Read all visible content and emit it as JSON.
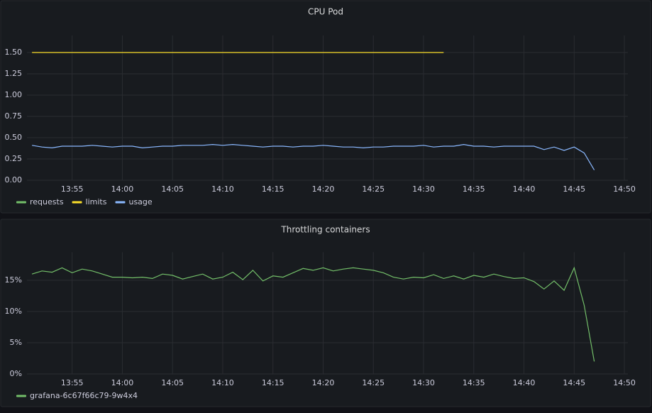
{
  "chart_data": [
    {
      "type": "line",
      "title": "CPU Pod",
      "x": [
        831,
        832,
        833,
        834,
        835,
        836,
        837,
        838,
        839,
        840,
        841,
        842,
        843,
        844,
        845,
        846,
        847,
        848,
        849,
        850,
        851,
        852,
        853,
        854,
        855,
        856,
        857,
        858,
        859,
        860,
        861,
        862,
        863,
        864,
        865,
        866,
        867,
        868,
        869,
        870,
        871,
        872,
        873,
        874,
        875,
        876,
        877,
        878,
        879,
        880,
        881,
        882,
        883,
        884,
        885,
        886,
        887
      ],
      "series": [
        {
          "name": "requests",
          "color": "#73bf69",
          "values": [
            null,
            null,
            null,
            null,
            null,
            null,
            null,
            null,
            null,
            null,
            null,
            null,
            null,
            null,
            null,
            null,
            null,
            null,
            null,
            null,
            null,
            null,
            null,
            null,
            null,
            null,
            null,
            null,
            null,
            null,
            null,
            null,
            null,
            null,
            null,
            null,
            null,
            null,
            null,
            null,
            null,
            null,
            null,
            null,
            null,
            null,
            null,
            null,
            null,
            null,
            null,
            null,
            null,
            null,
            null,
            null,
            null
          ]
        },
        {
          "name": "limits",
          "color": "#fade2a",
          "values": [
            1.5,
            1.5,
            1.5,
            1.5,
            1.5,
            1.5,
            1.5,
            1.5,
            1.5,
            1.5,
            1.5,
            1.5,
            1.5,
            1.5,
            1.5,
            1.5,
            1.5,
            1.5,
            1.5,
            1.5,
            1.5,
            1.5,
            1.5,
            1.5,
            1.5,
            1.5,
            1.5,
            1.5,
            1.5,
            1.5,
            1.5,
            1.5,
            1.5,
            1.5,
            1.5,
            1.5,
            1.5,
            1.5,
            1.5,
            1.5,
            1.5,
            1.5,
            null,
            null,
            null,
            null,
            null,
            null,
            null,
            null,
            null,
            null,
            null,
            null,
            null,
            null,
            null
          ]
        },
        {
          "name": "usage",
          "color": "#8ab8ff",
          "values": [
            0.41,
            0.39,
            0.38,
            0.4,
            0.4,
            0.4,
            0.41,
            0.4,
            0.39,
            0.4,
            0.4,
            0.38,
            0.39,
            0.4,
            0.4,
            0.41,
            0.41,
            0.41,
            0.42,
            0.41,
            0.42,
            0.41,
            0.4,
            0.39,
            0.4,
            0.4,
            0.39,
            0.4,
            0.4,
            0.41,
            0.4,
            0.39,
            0.39,
            0.38,
            0.39,
            0.39,
            0.4,
            0.4,
            0.4,
            0.41,
            0.39,
            0.4,
            0.4,
            0.42,
            0.4,
            0.4,
            0.39,
            0.4,
            0.4,
            0.4,
            0.4,
            0.36,
            0.39,
            0.35,
            0.39,
            0.32,
            0.12
          ]
        }
      ],
      "xlim": [
        830.5,
        890.35
      ],
      "xticks": [
        {
          "value": 835,
          "label": "13:55"
        },
        {
          "value": 840,
          "label": "14:00"
        },
        {
          "value": 845,
          "label": "14:05"
        },
        {
          "value": 850,
          "label": "14:10"
        },
        {
          "value": 855,
          "label": "14:15"
        },
        {
          "value": 860,
          "label": "14:20"
        },
        {
          "value": 865,
          "label": "14:25"
        },
        {
          "value": 870,
          "label": "14:30"
        },
        {
          "value": 875,
          "label": "14:35"
        },
        {
          "value": 880,
          "label": "14:40"
        },
        {
          "value": 885,
          "label": "14:45"
        },
        {
          "value": 890,
          "label": "14:50"
        }
      ],
      "ylim": [
        0,
        1.7
      ],
      "yticks": [
        {
          "value": 0,
          "label": "0.00"
        },
        {
          "value": 0.25,
          "label": "0.25"
        },
        {
          "value": 0.5,
          "label": "0.50"
        },
        {
          "value": 0.75,
          "label": "0.75"
        },
        {
          "value": 1,
          "label": "1.00"
        },
        {
          "value": 1.25,
          "label": "1.25"
        },
        {
          "value": 1.5,
          "label": "1.50"
        }
      ],
      "grid": true
    },
    {
      "type": "line",
      "title": "Throttling containers",
      "x": [
        831,
        832,
        833,
        834,
        835,
        836,
        837,
        838,
        839,
        840,
        841,
        842,
        843,
        844,
        845,
        846,
        847,
        848,
        849,
        850,
        851,
        852,
        853,
        854,
        855,
        856,
        857,
        858,
        859,
        860,
        861,
        862,
        863,
        864,
        865,
        866,
        867,
        868,
        869,
        870,
        871,
        872,
        873,
        874,
        875,
        876,
        877,
        878,
        879,
        880,
        881,
        882,
        883,
        884,
        885,
        886,
        887
      ],
      "series": [
        {
          "name": "grafana-6c67f66c79-9w4x4",
          "color": "#73bf69",
          "values": [
            16,
            16.5,
            16.3,
            17,
            16.2,
            16.8,
            16.5,
            16,
            15.5,
            15.5,
            15.4,
            15.5,
            15.3,
            16,
            15.8,
            15.2,
            15.6,
            16,
            15.2,
            15.5,
            16.3,
            15.1,
            16.6,
            14.9,
            15.7,
            15.5,
            16.2,
            16.9,
            16.6,
            17,
            16.5,
            16.8,
            17,
            16.8,
            16.6,
            16.2,
            15.5,
            15.2,
            15.5,
            15.4,
            15.9,
            15.3,
            15.7,
            15.2,
            15.8,
            15.5,
            16,
            15.6,
            15.3,
            15.4,
            14.8,
            13.6,
            14.9,
            13.4,
            17,
            11,
            2
          ]
        }
      ],
      "xlim": [
        830.5,
        890.35
      ],
      "xticks": [
        {
          "value": 835,
          "label": "13:55"
        },
        {
          "value": 840,
          "label": "14:00"
        },
        {
          "value": 845,
          "label": "14:05"
        },
        {
          "value": 850,
          "label": "14:10"
        },
        {
          "value": 855,
          "label": "14:15"
        },
        {
          "value": 860,
          "label": "14:20"
        },
        {
          "value": 865,
          "label": "14:25"
        },
        {
          "value": 870,
          "label": "14:30"
        },
        {
          "value": 875,
          "label": "14:35"
        },
        {
          "value": 880,
          "label": "14:40"
        },
        {
          "value": 885,
          "label": "14:45"
        },
        {
          "value": 890,
          "label": "14:50"
        }
      ],
      "ylim": [
        0,
        19.5
      ],
      "yticks": [
        {
          "value": 0,
          "label": "0%"
        },
        {
          "value": 5,
          "label": "5%"
        },
        {
          "value": 10,
          "label": "10%"
        },
        {
          "value": 15,
          "label": "15%"
        }
      ],
      "grid": true
    }
  ]
}
